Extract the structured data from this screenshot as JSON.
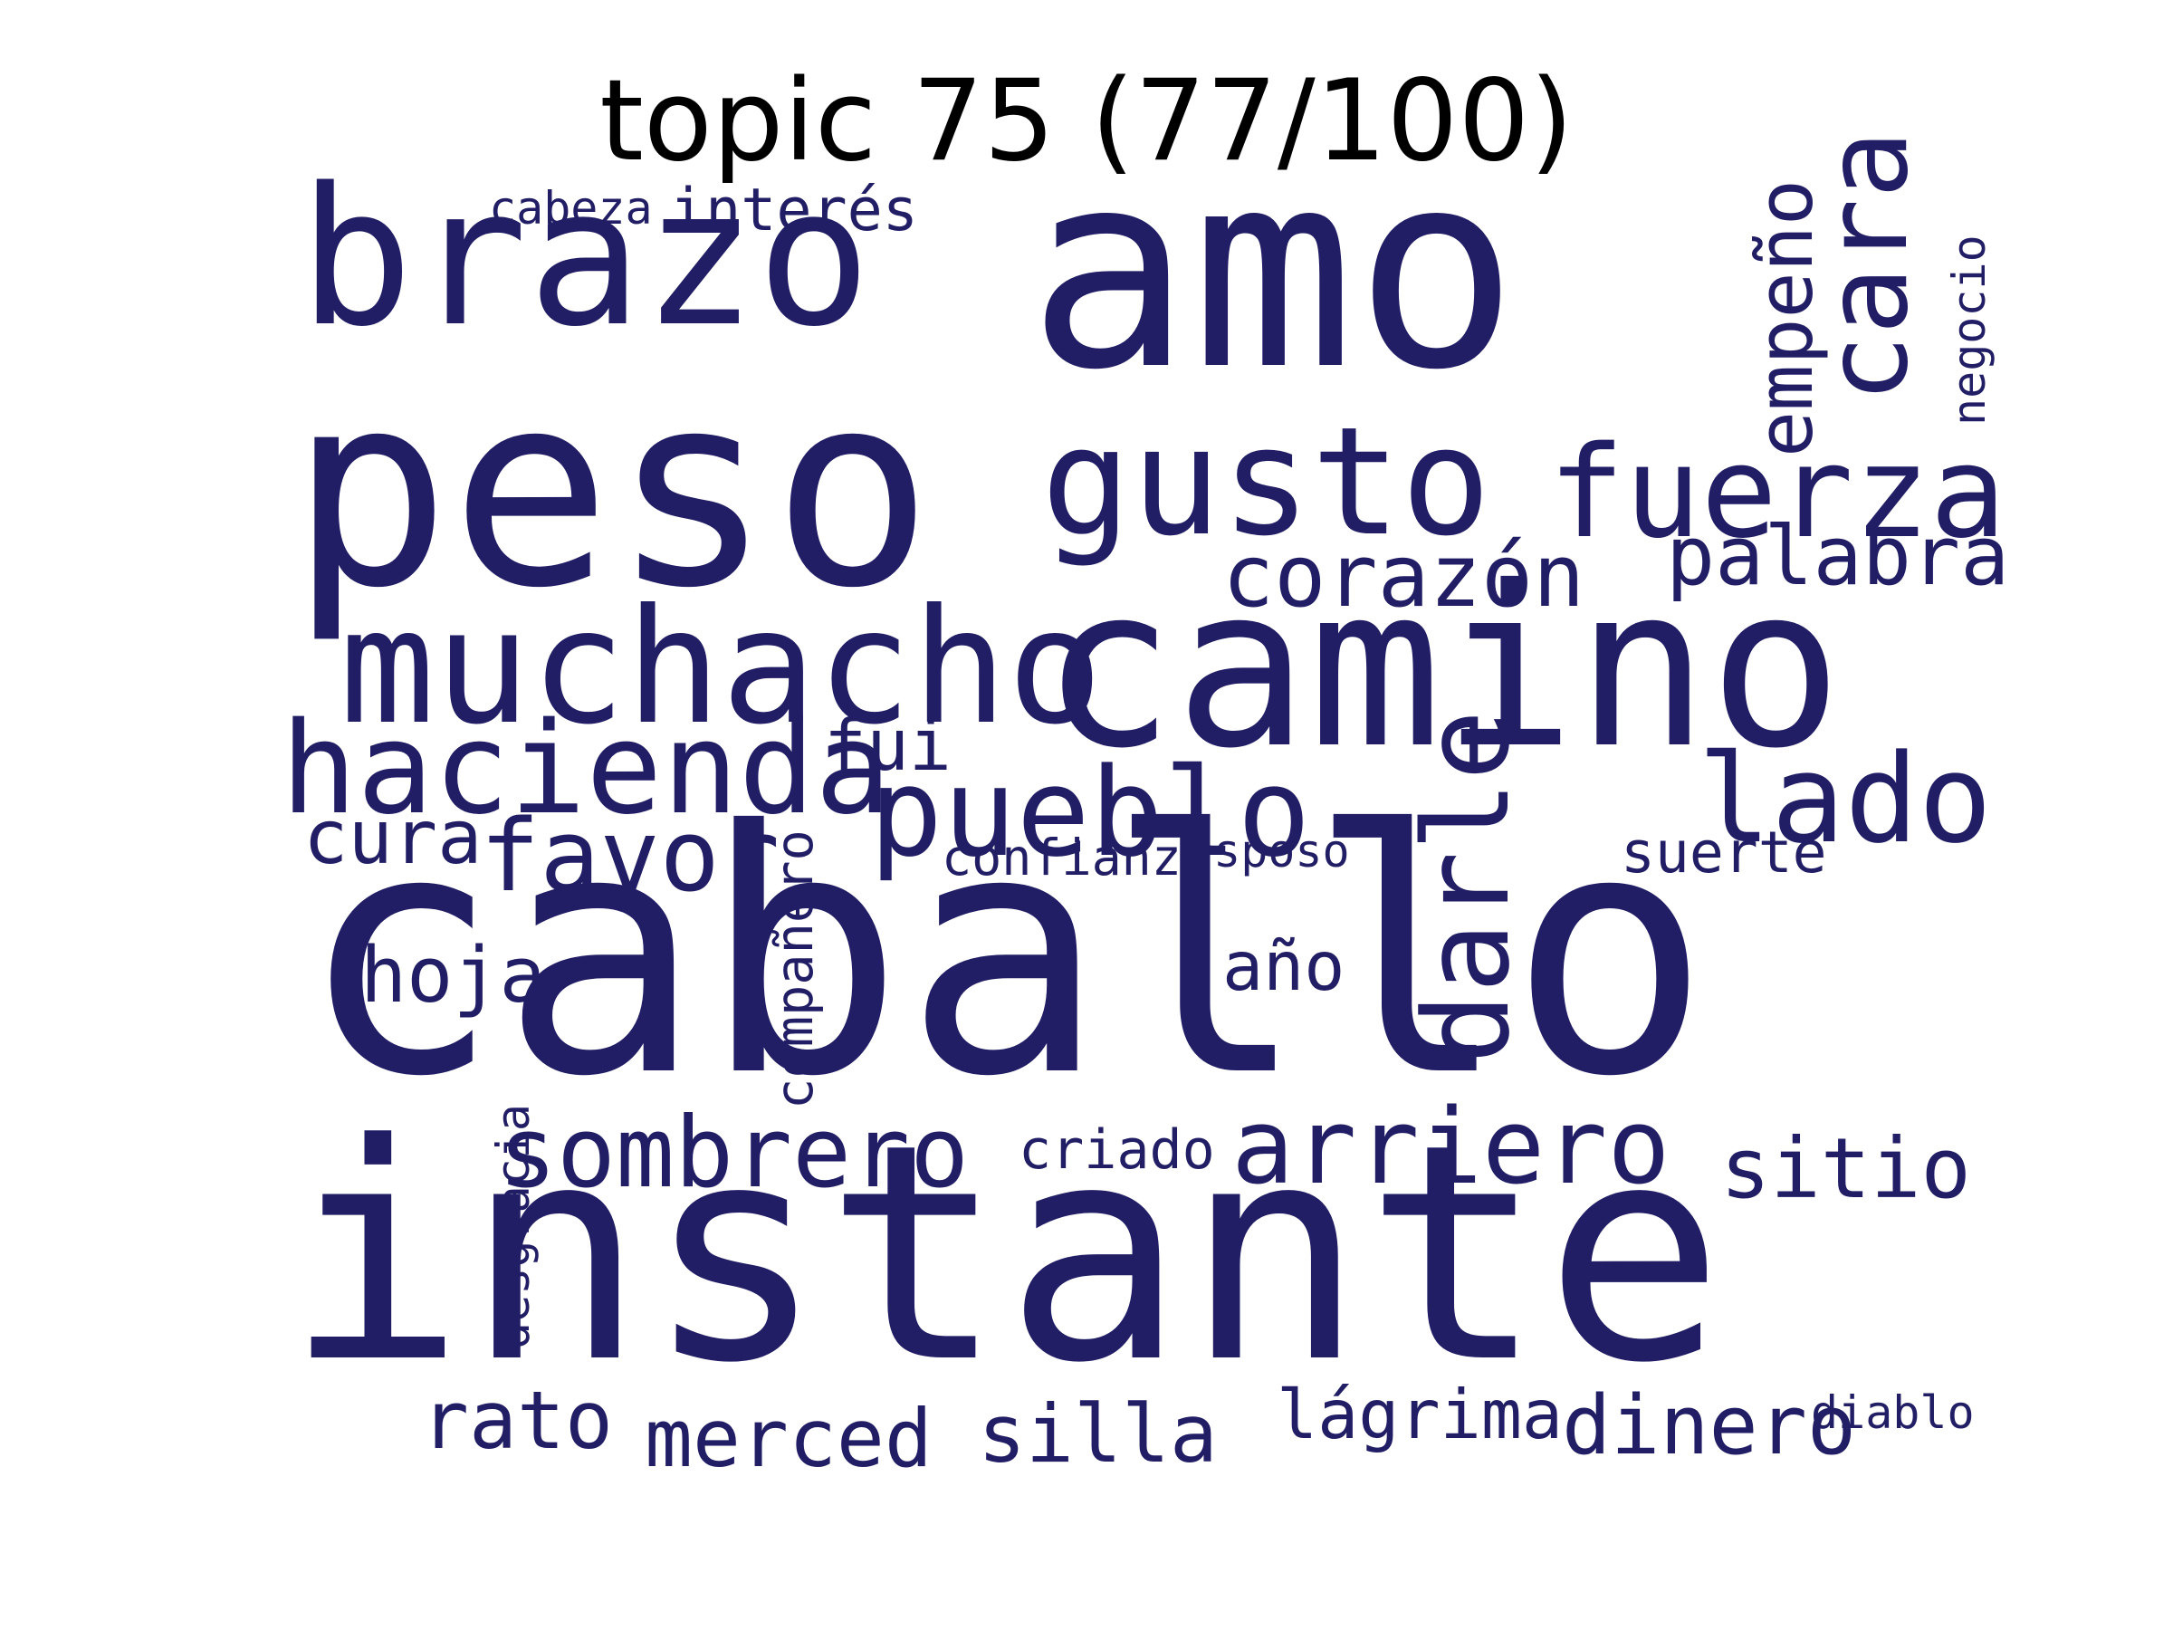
{
  "title": "topic 75 (77/100)",
  "colors": {
    "word": "#211e66",
    "background": "#ffffff",
    "title": "#000000"
  },
  "words": [
    {
      "text": "caballo",
      "weight": 1.0
    },
    {
      "text": "instante",
      "weight": 0.94
    },
    {
      "text": "amo",
      "weight": 0.86
    },
    {
      "text": "peso",
      "weight": 0.84
    },
    {
      "text": "camino",
      "weight": 0.7
    },
    {
      "text": "brazo",
      "weight": 0.6
    },
    {
      "text": "muchacho",
      "weight": 0.5
    },
    {
      "text": "gusto",
      "weight": 0.47
    },
    {
      "text": "fuerza",
      "weight": 0.4
    },
    {
      "text": "hacienda",
      "weight": 0.4
    },
    {
      "text": "pueblo",
      "weight": 0.38
    },
    {
      "text": "lado",
      "weight": 0.38
    },
    {
      "text": "darle",
      "weight": 0.36
    },
    {
      "text": "cara",
      "weight": 0.36
    },
    {
      "text": "arriero",
      "weight": 0.33
    },
    {
      "text": "sombrero",
      "weight": 0.31
    },
    {
      "text": "favor",
      "weight": 0.31
    },
    {
      "text": "corazón",
      "weight": 0.27
    },
    {
      "text": "sitio",
      "weight": 0.27
    },
    {
      "text": "palabra",
      "weight": 0.26
    },
    {
      "text": "dinero",
      "weight": 0.26
    },
    {
      "text": "empeño",
      "weight": 0.25
    },
    {
      "text": "merced",
      "weight": 0.25
    },
    {
      "text": "silla",
      "weight": 0.25
    },
    {
      "text": "rato",
      "weight": 0.25
    },
    {
      "text": "hoja",
      "weight": 0.25
    },
    {
      "text": "cura",
      "weight": 0.24
    },
    {
      "text": "fui",
      "weight": 0.23
    },
    {
      "text": "lágrima",
      "weight": 0.22
    },
    {
      "text": "año",
      "weight": 0.22
    },
    {
      "text": "interés",
      "weight": 0.19
    },
    {
      "text": "compañero",
      "weight": 0.16
    },
    {
      "text": "suerte",
      "weight": 0.19
    },
    {
      "text": "criado",
      "weight": 0.18
    },
    {
      "text": "desgracia",
      "weight": 0.16
    },
    {
      "text": "negocio",
      "weight": 0.15
    },
    {
      "text": "confianza",
      "weight": 0.17
    },
    {
      "text": "cabeza",
      "weight": 0.15
    },
    {
      "text": "esposo",
      "weight": 0.15
    },
    {
      "text": "diablo",
      "weight": 0.15
    }
  ]
}
